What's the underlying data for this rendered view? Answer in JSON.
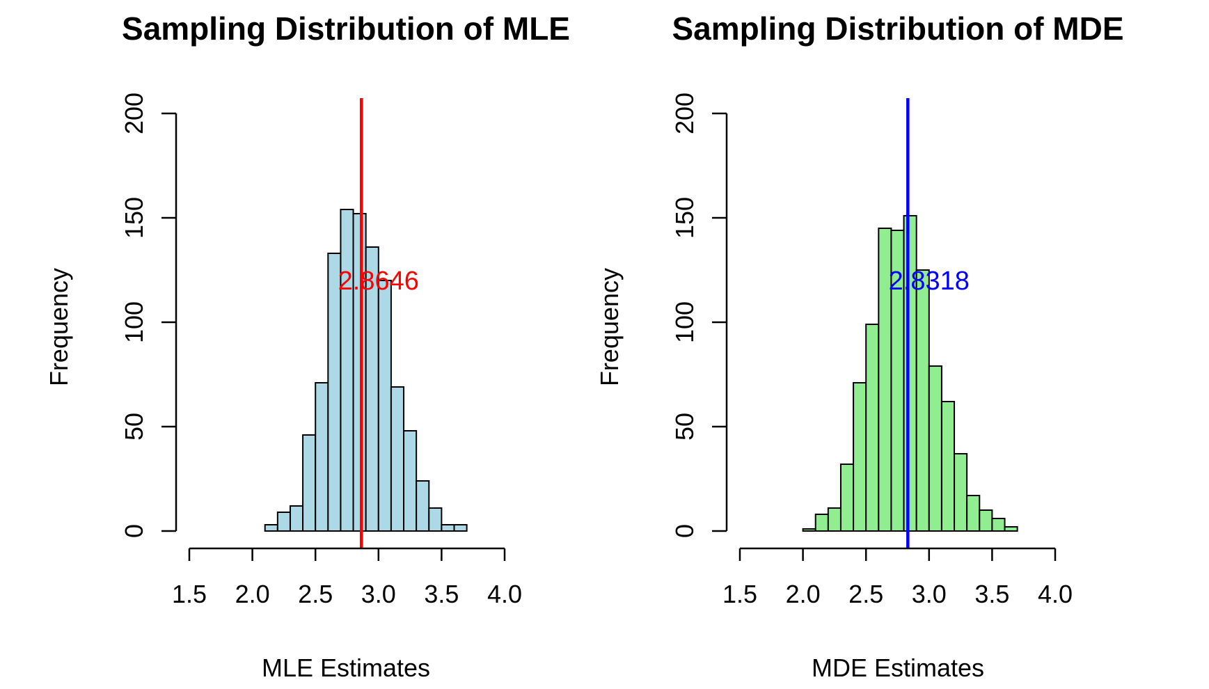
{
  "chart_data": [
    {
      "type": "bar",
      "title": "Sampling Distribution of MLE",
      "xlabel": "MLE Estimates",
      "ylabel": "Frequency",
      "xlim": [
        1.5,
        4.0
      ],
      "ylim": [
        0,
        200
      ],
      "x_ticks": [
        "1.5",
        "2.0",
        "2.5",
        "3.0",
        "3.5",
        "4.0"
      ],
      "y_ticks": [
        "0",
        "50",
        "100",
        "150",
        "200"
      ],
      "bin_width": 0.1,
      "bins_start": [
        2.1,
        2.2,
        2.3,
        2.4,
        2.5,
        2.6,
        2.7,
        2.8,
        2.9,
        3.0,
        3.1,
        3.2,
        3.3,
        3.4,
        3.5,
        3.6
      ],
      "values": [
        3,
        9,
        12,
        46,
        71,
        133,
        154,
        152,
        136,
        120,
        69,
        48,
        24,
        11,
        3,
        3
      ],
      "bar_color": "#add8e6",
      "vline": {
        "x": 2.8646,
        "color": "#ff0000"
      },
      "annotation": {
        "text": "2.8646",
        "x": 3.0,
        "y": 120,
        "color": "#ff0000"
      }
    },
    {
      "type": "bar",
      "title": "Sampling Distribution of MDE",
      "xlabel": "MDE Estimates",
      "ylabel": "Frequency",
      "xlim": [
        1.5,
        4.0
      ],
      "ylim": [
        0,
        200
      ],
      "x_ticks": [
        "1.5",
        "2.0",
        "2.5",
        "3.0",
        "3.5",
        "4.0"
      ],
      "y_ticks": [
        "0",
        "50",
        "100",
        "150",
        "200"
      ],
      "bin_width": 0.1,
      "bins_start": [
        2.0,
        2.1,
        2.2,
        2.3,
        2.4,
        2.5,
        2.6,
        2.7,
        2.8,
        2.9,
        3.0,
        3.1,
        3.2,
        3.3,
        3.4,
        3.5,
        3.6
      ],
      "values": [
        1,
        8,
        11,
        32,
        71,
        99,
        145,
        144,
        151,
        125,
        79,
        62,
        37,
        17,
        10,
        6,
        2
      ],
      "bar_color": "#90ee90",
      "vline": {
        "x": 2.8318,
        "color": "#0000ff"
      },
      "annotation": {
        "text": "2.8318",
        "x": 3.0,
        "y": 120,
        "color": "#0000ff"
      }
    }
  ]
}
